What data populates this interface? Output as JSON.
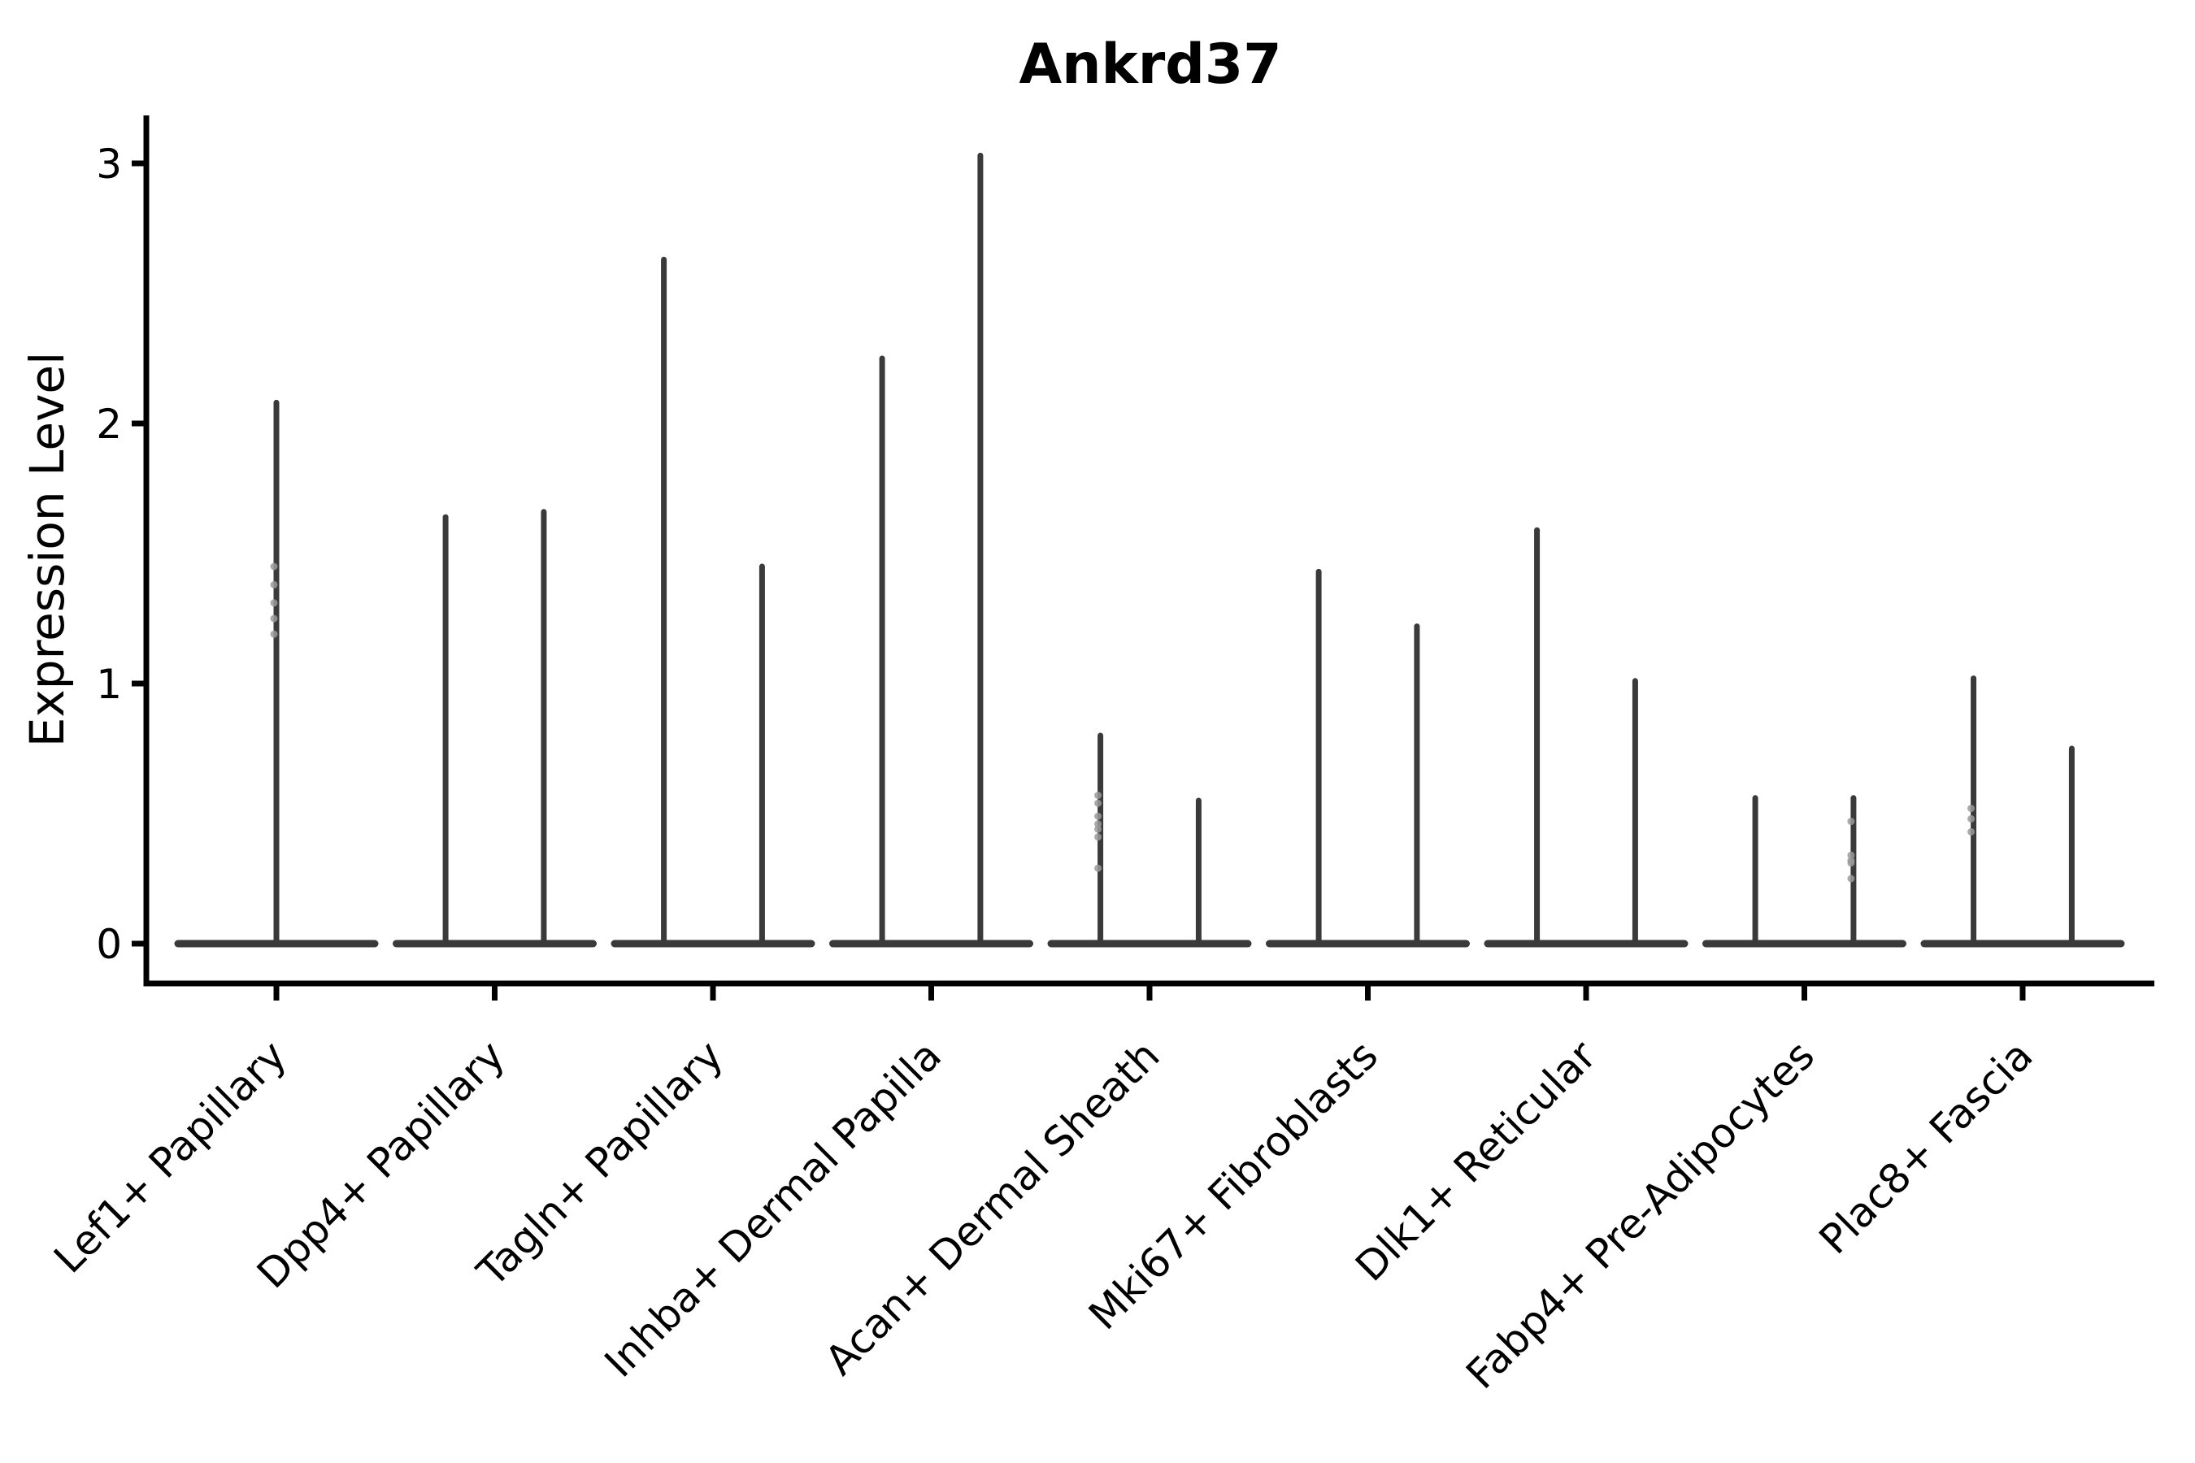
{
  "chart_data": {
    "type": "violin",
    "title": "Ankrd37",
    "xlabel": "",
    "ylabel": "Expression Level",
    "ylim": [
      -0.15,
      3.18
    ],
    "yticks": [
      0,
      1,
      2,
      3
    ],
    "grid": false,
    "legend": null,
    "xticklabel_rotation": 45,
    "violin_width_fraction": 0.9,
    "baseline_value": 0,
    "categories": [
      "Lef1+ Papillary",
      "Dpp4+ Papillary",
      "Tagln+ Papillary",
      "Inhba+ Dermal Papilla",
      "Acan+ Dermal Sheath",
      "Mki67+ Fibroblasts",
      "Dlk1+ Reticular",
      "Fabp4+ Pre-Adipocytes",
      "Plac8+ Fascia"
    ],
    "violins": [
      {
        "category": "Lef1+ Papillary",
        "tails": [
          {
            "offset": 0,
            "max": 2.08,
            "points": [
              1.45,
              1.38,
              1.31,
              1.25,
              1.19
            ]
          }
        ]
      },
      {
        "category": "Dpp4+ Papillary",
        "tails": [
          {
            "offset": -0.225,
            "max": 1.64,
            "points": []
          },
          {
            "offset": 0.225,
            "max": 1.66,
            "points": []
          }
        ]
      },
      {
        "category": "Tagln+ Papillary",
        "tails": [
          {
            "offset": -0.225,
            "max": 2.63,
            "points": []
          },
          {
            "offset": 0.225,
            "max": 1.45,
            "points": []
          }
        ]
      },
      {
        "category": "Inhba+ Dermal Papilla",
        "tails": [
          {
            "offset": -0.225,
            "max": 2.25,
            "points": []
          },
          {
            "offset": 0.225,
            "max": 3.03,
            "points": []
          }
        ]
      },
      {
        "category": "Acan+ Dermal Sheath",
        "tails": [
          {
            "offset": -0.225,
            "max": 0.8,
            "points": [
              0.57,
              0.54,
              0.49,
              0.46,
              0.44,
              0.41,
              0.29
            ]
          },
          {
            "offset": 0.225,
            "max": 0.55,
            "points": []
          }
        ]
      },
      {
        "category": "Mki67+ Fibroblasts",
        "tails": [
          {
            "offset": -0.225,
            "max": 1.43,
            "points": []
          },
          {
            "offset": 0.225,
            "max": 1.22,
            "points": []
          }
        ]
      },
      {
        "category": "Dlk1+ Reticular",
        "tails": [
          {
            "offset": -0.225,
            "max": 1.59,
            "points": []
          },
          {
            "offset": 0.225,
            "max": 1.01,
            "points": []
          }
        ]
      },
      {
        "category": "Fabp4+ Pre-Adipocytes",
        "tails": [
          {
            "offset": -0.225,
            "max": 0.56,
            "points": []
          },
          {
            "offset": 0.225,
            "max": 0.56,
            "points": [
              0.47,
              0.34,
              0.32,
              0.31,
              0.25
            ]
          }
        ]
      },
      {
        "category": "Plac8+ Fascia",
        "tails": [
          {
            "offset": -0.225,
            "max": 1.02,
            "points": [
              0.52,
              0.48,
              0.43
            ]
          },
          {
            "offset": 0.225,
            "max": 0.75,
            "points": []
          }
        ]
      }
    ],
    "colors": {
      "violin": "#3a3a3a",
      "axis": "#000000",
      "text": "#000000",
      "points": "#9a9a9a",
      "background": "#ffffff"
    }
  }
}
